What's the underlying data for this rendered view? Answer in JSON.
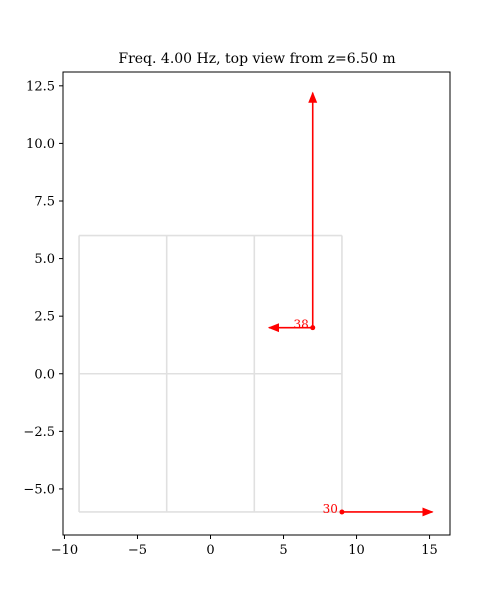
{
  "chart_data": {
    "type": "line",
    "title": "Freq. 4.00 Hz, top view from z=6.50 m",
    "xlabel": "",
    "ylabel": "",
    "xlim": [
      -10.1,
      16.4
    ],
    "ylim": [
      -7.0,
      13.1
    ],
    "grid": false,
    "x_ticks": [
      -10,
      -5,
      0,
      5,
      10,
      15
    ],
    "x_tick_labels": [
      "−10",
      "−5",
      "0",
      "5",
      "10",
      "15"
    ],
    "y_ticks": [
      -5.0,
      -2.5,
      0.0,
      2.5,
      5.0,
      7.5,
      10.0,
      12.5
    ],
    "y_tick_labels": [
      "−5.0",
      "−2.5",
      "0.0",
      "2.5",
      "5.0",
      "7.5",
      "10.0",
      "12.5"
    ],
    "structure_lines": {
      "color": "#e0e0e0",
      "segments": [
        [
          [
            -9,
            -6
          ],
          [
            9,
            -6
          ]
        ],
        [
          [
            -9,
            0
          ],
          [
            9,
            0
          ]
        ],
        [
          [
            -9,
            6
          ],
          [
            9,
            6
          ]
        ],
        [
          [
            -9,
            -6
          ],
          [
            -9,
            6
          ]
        ],
        [
          [
            -3,
            -6
          ],
          [
            -3,
            6
          ]
        ],
        [
          [
            3,
            -6
          ],
          [
            3,
            6
          ]
        ],
        [
          [
            9,
            -6
          ],
          [
            9,
            6
          ]
        ]
      ]
    },
    "nodes": [
      {
        "label": "38",
        "x": 7.0,
        "y": 2.0,
        "color": "#ff0000",
        "arrows": [
          {
            "dx": -3.0,
            "dy": 0.0
          },
          {
            "dx": 0.0,
            "dy": 10.2
          }
        ]
      },
      {
        "label": "30",
        "x": 9.0,
        "y": -6.0,
        "color": "#ff0000",
        "arrows": [
          {
            "dx": 6.2,
            "dy": 0.0
          }
        ]
      }
    ]
  }
}
